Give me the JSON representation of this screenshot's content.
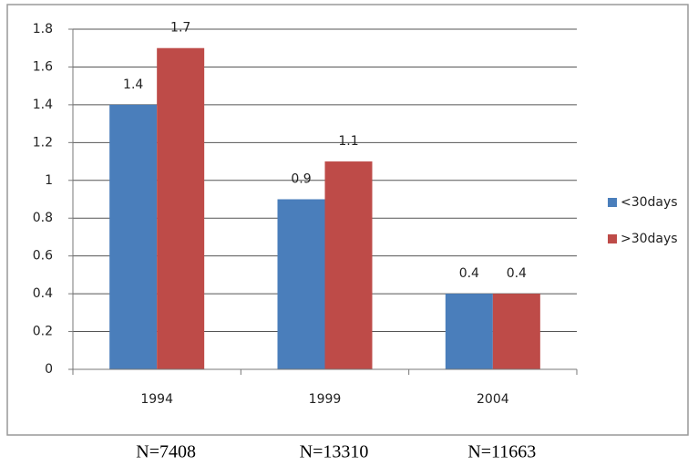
{
  "chart_data": {
    "type": "bar",
    "categories": [
      "1994",
      "1999",
      "2004"
    ],
    "series": [
      {
        "name": "<30days",
        "color": "#4a7ebb",
        "values": [
          1.4,
          0.9,
          0.4
        ]
      },
      {
        "name": ">30days",
        "color": "#be4b48",
        "values": [
          1.7,
          1.1,
          0.4
        ]
      }
    ],
    "ylim": [
      0,
      1.8
    ],
    "yticks": [
      0,
      0.2,
      0.4,
      0.6,
      0.8,
      1,
      1.2,
      1.4,
      1.6,
      1.8
    ],
    "grid": true,
    "legend": "right",
    "sample_sizes": [
      "N=7408",
      "N=13310",
      "N=11663"
    ]
  }
}
